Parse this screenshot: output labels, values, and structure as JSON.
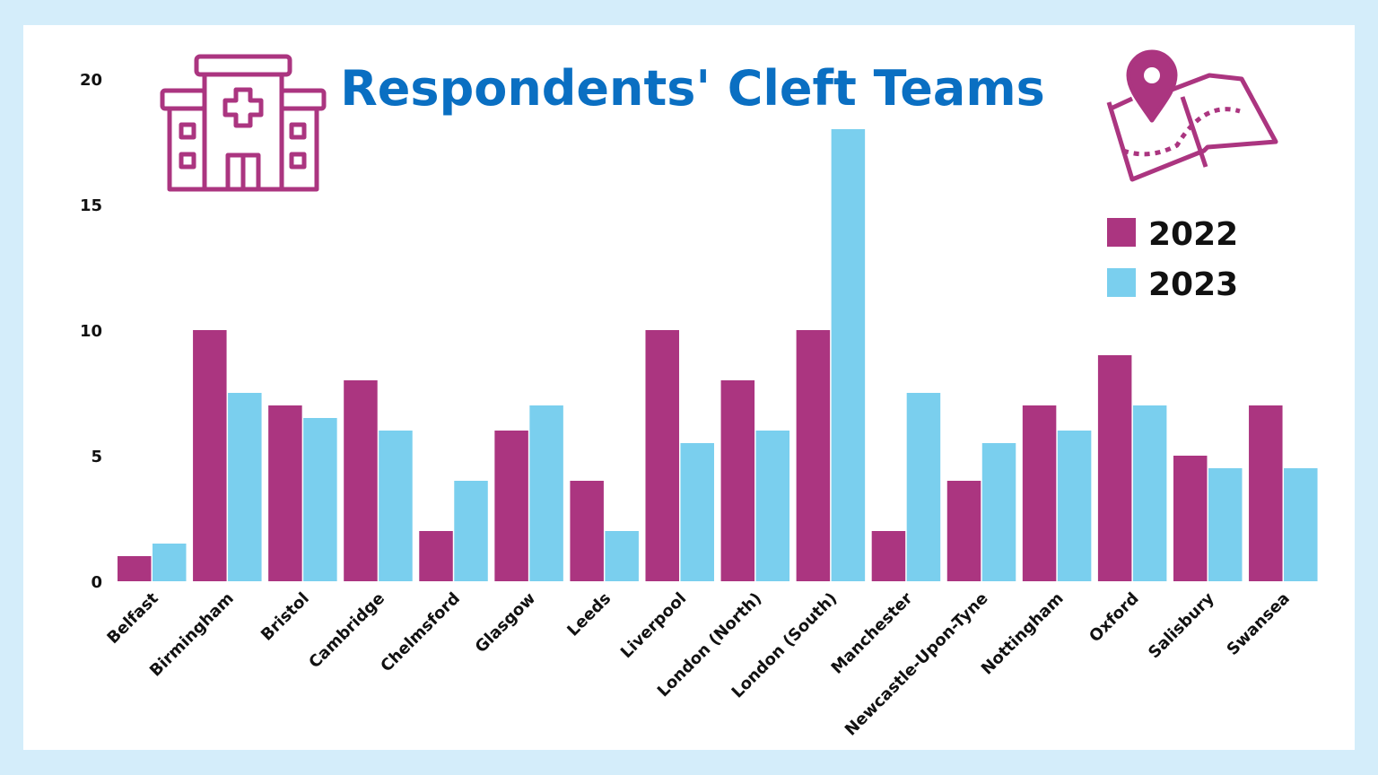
{
  "chart_data": {
    "type": "bar",
    "title": "Respondents' Cleft Teams",
    "xlabel": "",
    "ylabel": "",
    "ylim": [
      0,
      20
    ],
    "yticks": [
      0,
      5,
      10,
      15,
      20
    ],
    "grid": false,
    "legend_position": "top-right",
    "categories": [
      "Belfast",
      "Birmingham",
      "Bristol",
      "Cambridge",
      "Chelmsford",
      "Glasgow",
      "Leeds",
      "Liverpool",
      "London (North)",
      "London (South)",
      "Manchester",
      "Newcastle-Upon-Tyne",
      "Nottingham",
      "Oxford",
      "Salisbury",
      "Swansea"
    ],
    "series": [
      {
        "name": "2022",
        "color": "#ab3580",
        "values": [
          1,
          10,
          7,
          8,
          2,
          6,
          4,
          10,
          8,
          10,
          2,
          4,
          7,
          9,
          5,
          7
        ]
      },
      {
        "name": "2023",
        "color": "#7acfee",
        "values": [
          1.5,
          7.5,
          6.5,
          6,
          4,
          7,
          2,
          5.5,
          6,
          18,
          7.5,
          5.5,
          6,
          7,
          4.5,
          4.5
        ]
      }
    ]
  },
  "colors": {
    "title": "#0a6fc2",
    "background": "#d4edfa",
    "icons": "#ab3580"
  },
  "icons": [
    "hospital-icon",
    "map-pin-icon"
  ]
}
